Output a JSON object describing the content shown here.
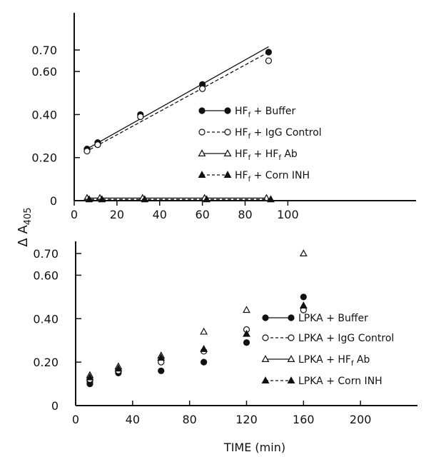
{
  "figure": {
    "ylabel_main": "Δ A",
    "ylabel_sub": "405",
    "xlabel": "TIME (min)"
  },
  "chart_data": [
    {
      "type": "scatter",
      "panel": "top",
      "xlim": [
        0,
        160
      ],
      "ylim": [
        0,
        0.7
      ],
      "x_ticks": [
        0,
        20,
        40,
        60,
        80,
        100
      ],
      "y_ticks": [
        0,
        0.2,
        0.4,
        0.6,
        0.7
      ],
      "y_tick_labels": [
        "0",
        "0.20",
        "0.40",
        "0.60",
        "0.70"
      ],
      "legend_position": "right",
      "series": [
        {
          "name": "HF",
          "sub": "f",
          "suffix": " + Buffer",
          "marker": "filled-circle",
          "line": "solid",
          "x": [
            6,
            11,
            31,
            60,
            91
          ],
          "y": [
            0.24,
            0.27,
            0.4,
            0.54,
            0.69
          ],
          "fit": [
            [
              5,
              0.235
            ],
            [
              91,
              0.715
            ]
          ]
        },
        {
          "name": "HF",
          "sub": "f",
          "suffix": " + IgG Control",
          "marker": "open-circle",
          "line": "dashed",
          "x": [
            6,
            11,
            31,
            60,
            91
          ],
          "y": [
            0.23,
            0.26,
            0.39,
            0.52,
            0.65
          ],
          "fit": [
            [
              5,
              0.225
            ],
            [
              91,
              0.69
            ]
          ]
        },
        {
          "name": "HF",
          "sub": "f",
          "suffix": " + HF",
          "sub2": "f",
          "suffix2": " Ab",
          "marker": "open-triangle",
          "line": "solid",
          "x": [
            6,
            12,
            32,
            61,
            90
          ],
          "y": [
            0.012,
            0.012,
            0.012,
            0.012,
            0.012
          ],
          "fit": [
            [
              5,
              0.012
            ],
            [
              90,
              0.012
            ]
          ]
        },
        {
          "name": "HF",
          "sub": "f",
          "suffix": " + Corn INH",
          "marker": "filled-triangle",
          "line": "dashed",
          "x": [
            7,
            13,
            33,
            62,
            92
          ],
          "y": [
            0.006,
            0.006,
            0.006,
            0.006,
            0.006
          ],
          "fit": [
            [
              5,
              0.006
            ],
            [
              92,
              0.006
            ]
          ]
        }
      ]
    },
    {
      "type": "scatter",
      "panel": "bottom",
      "xlim": [
        0,
        240
      ],
      "ylim": [
        0,
        0.7
      ],
      "x_ticks": [
        0,
        40,
        80,
        120,
        160,
        200
      ],
      "y_ticks": [
        0,
        0.2,
        0.4,
        0.6,
        0.7
      ],
      "y_tick_labels": [
        "0",
        "0.20",
        "0.40",
        "0.60",
        "0.70"
      ],
      "legend_position": "right",
      "series": [
        {
          "name": "LPKA + Buffer",
          "marker": "filled-circle",
          "line": "solid",
          "x": [
            10,
            10,
            30,
            60,
            90,
            120,
            160
          ],
          "y": [
            0.1,
            0.11,
            0.15,
            0.16,
            0.2,
            0.29,
            0.5
          ]
        },
        {
          "name": "LPKA + IgG Control",
          "marker": "open-circle",
          "line": "dashed",
          "x": [
            10,
            30,
            60,
            90,
            120,
            160
          ],
          "y": [
            0.12,
            0.16,
            0.2,
            0.25,
            0.35,
            0.44
          ]
        },
        {
          "name": "LPKA + HF",
          "sub": "f",
          "suffix": " Ab",
          "marker": "open-triangle",
          "line": "solid",
          "x": [
            10,
            30,
            60,
            90,
            120,
            160
          ],
          "y": [
            0.14,
            0.18,
            0.23,
            0.34,
            0.44,
            0.7
          ]
        },
        {
          "name": "LPKA + Corn INH",
          "marker": "filled-triangle",
          "line": "dashed",
          "x": [
            10,
            30,
            60,
            90,
            120,
            160
          ],
          "y": [
            0.13,
            0.17,
            0.22,
            0.26,
            0.33,
            0.46
          ]
        }
      ]
    }
  ]
}
